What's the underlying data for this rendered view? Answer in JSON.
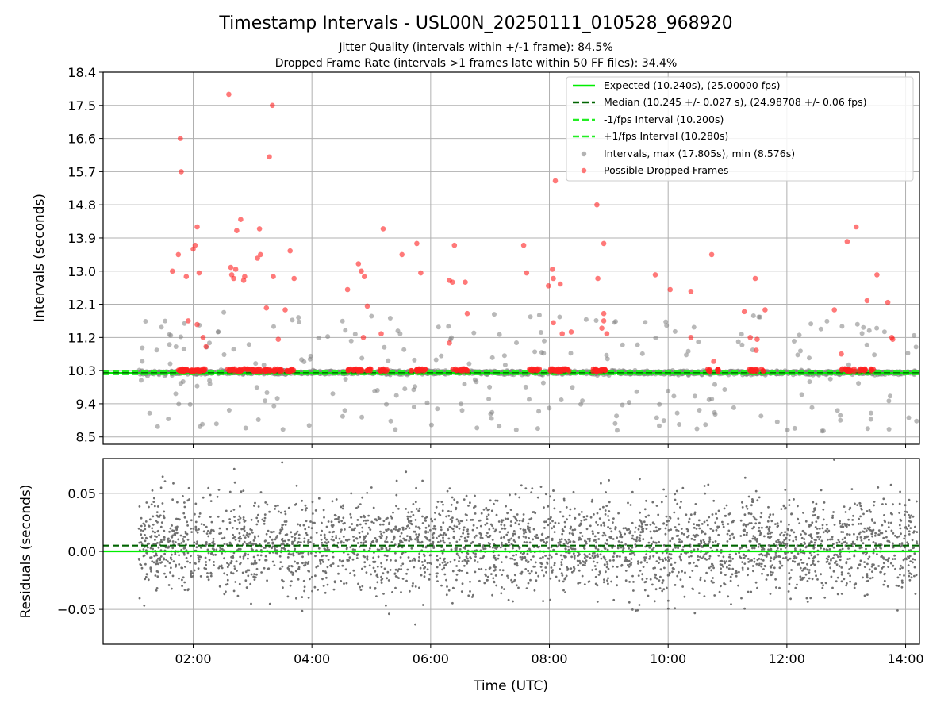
{
  "title": "Timestamp Intervals - USL00N_20250111_010528_968920",
  "subtitles": [
    "Jitter Quality (intervals within +/-1 frame): 84.5%",
    "Dropped Frame Rate (intervals >1 frames late within 50 FF files): 34.4%"
  ],
  "colors": {
    "expected": "#00ee00",
    "median": "#006400",
    "bound": "#22ee22",
    "interval": "#808080",
    "dropped": "#ff2020",
    "grid": "#b0b0b0",
    "residual": "#707070"
  },
  "chart_data": [
    {
      "type": "scatter",
      "ylabel": "Intervals (seconds)",
      "xlim": [
        "00:29",
        "14:14"
      ],
      "ylim": [
        8.3,
        18.4
      ],
      "x_ticks": [
        "02:00",
        "04:00",
        "06:00",
        "08:00",
        "10:00",
        "12:00",
        "14:00"
      ],
      "y_ticks": [
        "8.5",
        "9.4",
        "10.3",
        "11.2",
        "12.1",
        "13.0",
        "13.9",
        "14.8",
        "15.7",
        "16.6",
        "17.5",
        "18.4"
      ],
      "grid": true,
      "legend_position": "top-right",
      "reference_lines": [
        {
          "name": "Expected (10.240s), (25.00000 fps)",
          "y": 10.24,
          "style": "solid"
        },
        {
          "name": "Median (10.245 +/- 0.027 s), (24.98708 +/- 0.06 fps)",
          "y": 10.245,
          "style": "dashed"
        },
        {
          "name": "-1/fps Interval (10.200s)",
          "y": 10.2,
          "style": "dashed"
        },
        {
          "name": "+1/fps Interval (10.280s)",
          "y": 10.28,
          "style": "dashed"
        }
      ],
      "series": [
        {
          "name": "Intervals, max (17.805s), min (8.576s)",
          "marker": "circle"
        },
        {
          "name": "Possible Dropped Frames",
          "marker": "circle",
          "points": [
            [
              "01:39",
              13.0
            ],
            [
              "01:45",
              13.45
            ],
            [
              "01:47",
              16.6
            ],
            [
              "01:48",
              15.7
            ],
            [
              "01:53",
              12.85
            ],
            [
              "01:55",
              11.65
            ],
            [
              "02:00",
              13.6
            ],
            [
              "02:02",
              13.7
            ],
            [
              "02:04",
              14.2
            ],
            [
              "02:04",
              11.55
            ],
            [
              "02:06",
              12.95
            ],
            [
              "02:10",
              11.2
            ],
            [
              "02:13",
              10.95
            ],
            [
              "02:36",
              17.8
            ],
            [
              "02:38",
              13.1
            ],
            [
              "02:39",
              12.9
            ],
            [
              "02:41",
              12.8
            ],
            [
              "02:43",
              13.05
            ],
            [
              "02:44",
              14.1
            ],
            [
              "02:48",
              14.4
            ],
            [
              "02:51",
              12.75
            ],
            [
              "02:52",
              12.85
            ],
            [
              "03:05",
              13.35
            ],
            [
              "03:08",
              13.45
            ],
            [
              "03:07",
              14.15
            ],
            [
              "03:14",
              12.0
            ],
            [
              "03:17",
              16.1
            ],
            [
              "03:20",
              17.5
            ],
            [
              "03:21",
              12.85
            ],
            [
              "03:26",
              11.15
            ],
            [
              "03:33",
              11.95
            ],
            [
              "03:38",
              13.55
            ],
            [
              "03:42",
              12.8
            ],
            [
              "04:36",
              12.5
            ],
            [
              "04:47",
              13.2
            ],
            [
              "04:50",
              13.0
            ],
            [
              "04:53",
              12.85
            ],
            [
              "04:56",
              12.05
            ],
            [
              "04:52",
              11.2
            ],
            [
              "05:12",
              14.15
            ],
            [
              "05:10",
              11.3
            ],
            [
              "05:31",
              13.45
            ],
            [
              "05:46",
              13.75
            ],
            [
              "05:50",
              12.95
            ],
            [
              "06:19",
              12.75
            ],
            [
              "06:22",
              12.7
            ],
            [
              "06:24",
              13.7
            ],
            [
              "06:35",
              12.7
            ],
            [
              "06:37",
              11.85
            ],
            [
              "06:19",
              11.05
            ],
            [
              "07:34",
              13.7
            ],
            [
              "07:37",
              12.95
            ],
            [
              "07:59",
              12.6
            ],
            [
              "08:03",
              13.05
            ],
            [
              "08:04",
              12.8
            ],
            [
              "08:06",
              15.45
            ],
            [
              "08:04",
              11.6
            ],
            [
              "08:11",
              12.65
            ],
            [
              "08:13",
              11.3
            ],
            [
              "08:22",
              11.35
            ],
            [
              "08:48",
              14.8
            ],
            [
              "08:49",
              12.8
            ],
            [
              "08:55",
              13.75
            ],
            [
              "08:55",
              11.85
            ],
            [
              "08:55",
              11.65
            ],
            [
              "08:58",
              11.3
            ],
            [
              "08:53",
              11.45
            ],
            [
              "09:47",
              12.9
            ],
            [
              "10:02",
              12.5
            ],
            [
              "10:23",
              12.45
            ],
            [
              "10:23",
              11.2
            ],
            [
              "10:44",
              13.45
            ],
            [
              "10:46",
              10.55
            ],
            [
              "11:17",
              11.9
            ],
            [
              "11:23",
              11.2
            ],
            [
              "11:28",
              12.8
            ],
            [
              "11:30",
              11.15
            ],
            [
              "11:29",
              10.85
            ],
            [
              "11:38",
              11.95
            ],
            [
              "12:48",
              11.95
            ],
            [
              "12:55",
              10.75
            ],
            [
              "13:01",
              13.8
            ],
            [
              "13:10",
              14.2
            ],
            [
              "13:21",
              12.2
            ],
            [
              "13:31",
              12.9
            ],
            [
              "13:42",
              12.15
            ],
            [
              "13:46",
              11.2
            ],
            [
              "13:47",
              11.15
            ]
          ]
        }
      ]
    },
    {
      "type": "scatter",
      "xlabel": "Time (UTC)",
      "ylabel": "Residuals (seconds)",
      "xlim": [
        "00:29",
        "14:14"
      ],
      "ylim": [
        -0.08,
        0.08
      ],
      "x_ticks": [
        "02:00",
        "04:00",
        "06:00",
        "08:00",
        "10:00",
        "12:00",
        "14:00"
      ],
      "y_ticks": [
        "−0.05",
        "0.00",
        "0.05"
      ],
      "grid": true,
      "reference_lines": [
        {
          "y": 0.0,
          "style": "solid"
        },
        {
          "y": 0.005,
          "style": "dashed"
        }
      ],
      "series": [
        {
          "marker": "dot"
        }
      ]
    }
  ]
}
